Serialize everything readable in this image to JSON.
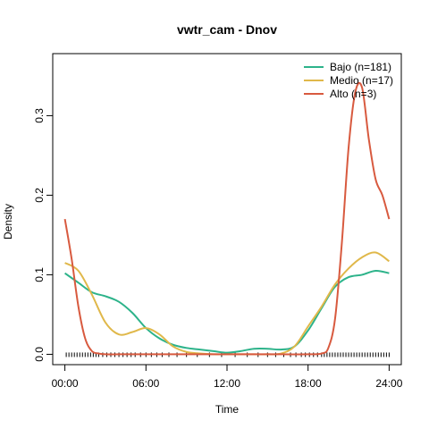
{
  "chart_data": {
    "type": "line",
    "title": "vwtr_cam - Dnov",
    "xlabel": "Time",
    "ylabel": "Density",
    "x_ticks": [
      {
        "value": 0,
        "label": "00:00"
      },
      {
        "value": 6,
        "label": "06:00"
      },
      {
        "value": 12,
        "label": "12:00"
      },
      {
        "value": 18,
        "label": "18:00"
      },
      {
        "value": 24,
        "label": "24:00"
      }
    ],
    "y_ticks": [
      {
        "value": 0.0,
        "label": "0.0"
      },
      {
        "value": 0.1,
        "label": "0.1"
      },
      {
        "value": 0.2,
        "label": "0.2"
      },
      {
        "value": 0.3,
        "label": "0.3"
      }
    ],
    "xlim": [
      -0.9,
      24.9
    ],
    "ylim": [
      -0.013,
      0.378
    ],
    "grid": false,
    "legend_position": "top-right",
    "series": [
      {
        "name": "Bajo (n=181)",
        "color": "#2db38a",
        "x": [
          0,
          1,
          2,
          3,
          4,
          5,
          6,
          7,
          8,
          9,
          10,
          11,
          12,
          13,
          14,
          15,
          16,
          17,
          18,
          19,
          20,
          21,
          22,
          23,
          24
        ],
        "y": [
          0.102,
          0.09,
          0.078,
          0.073,
          0.066,
          0.052,
          0.033,
          0.02,
          0.012,
          0.008,
          0.006,
          0.004,
          0.002,
          0.004,
          0.007,
          0.007,
          0.006,
          0.01,
          0.03,
          0.058,
          0.085,
          0.097,
          0.1,
          0.105,
          0.102
        ]
      },
      {
        "name": "Medio (n=17)",
        "color": "#e0b84a",
        "x": [
          0,
          1,
          2,
          3,
          4,
          5,
          6,
          7,
          8,
          9,
          10,
          11,
          12,
          13,
          14,
          15,
          16,
          17,
          18,
          19,
          20,
          21,
          22,
          23,
          24
        ],
        "y": [
          0.115,
          0.105,
          0.075,
          0.04,
          0.025,
          0.028,
          0.033,
          0.025,
          0.01,
          0.003,
          0.001,
          0.0,
          0.0,
          0.0,
          0.0,
          0.0,
          0.001,
          0.01,
          0.035,
          0.06,
          0.088,
          0.108,
          0.122,
          0.128,
          0.117
        ]
      },
      {
        "name": "Alto (n=3)",
        "color": "#d85a3f",
        "x": [
          0,
          0.5,
          1,
          1.5,
          2,
          2.5,
          3,
          4,
          6,
          8,
          10,
          12,
          14,
          16,
          18,
          19,
          19.5,
          20,
          20.5,
          21,
          21.5,
          22,
          22.5,
          23,
          23.5,
          24
        ],
        "y": [
          0.17,
          0.12,
          0.06,
          0.02,
          0.004,
          0.001,
          0.0,
          0.0,
          0.0,
          0.0,
          0.0,
          0.0,
          0.0,
          0.0,
          0.0,
          0.001,
          0.008,
          0.045,
          0.14,
          0.26,
          0.33,
          0.335,
          0.27,
          0.22,
          0.2,
          0.17
        ]
      }
    ],
    "rug": [
      0.1,
      0.3,
      0.5,
      0.7,
      0.9,
      1.1,
      1.3,
      1.5,
      1.7,
      1.9,
      2.1,
      2.3,
      2.5,
      2.8,
      3.1,
      3.4,
      3.7,
      4.0,
      4.3,
      4.6,
      4.9,
      5.2,
      5.6,
      6.0,
      6.4,
      6.8,
      7.2,
      7.7,
      8.3,
      9.0,
      9.8,
      10.7,
      11.6,
      12.6,
      13.5,
      14.3,
      15.0,
      15.6,
      16.2,
      16.7,
      17.1,
      17.5,
      17.8,
      18.1,
      18.4,
      18.7,
      19.0,
      19.2,
      19.4,
      19.6,
      19.8,
      20.0,
      20.2,
      20.4,
      20.6,
      20.8,
      21.0,
      21.2,
      21.4,
      21.6,
      21.8,
      22.0,
      22.2,
      22.4,
      22.6,
      22.8,
      23.0,
      23.2,
      23.4,
      23.6,
      23.8,
      24.0
    ]
  }
}
